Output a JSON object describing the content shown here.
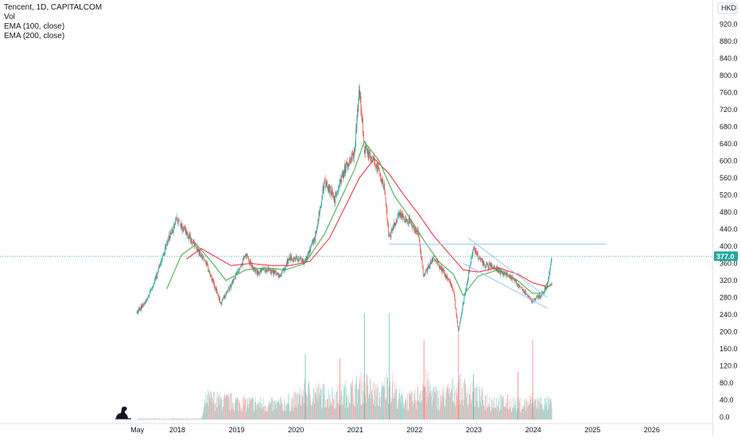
{
  "legend": {
    "title": "Tencent, 1D, CAPITALCOM",
    "vol": "Vol",
    "ema100": "EMA (100, close)",
    "ema200": "EMA (200, close)"
  },
  "currency": "HKD",
  "colors": {
    "up": "#26a69a",
    "down": "#ef5350",
    "ema100": "#4caf50",
    "ema200": "#f23645",
    "trendline": "#90caf9",
    "price_line": "#26a69a",
    "price_badge": "#26a69a"
  },
  "chart_data": {
    "type": "candlestick",
    "title": "Tencent, 1D, CAPITALCOM",
    "ylabel": "HKD",
    "ylim": [
      0,
      940
    ],
    "y_ticks": [
      "920.0",
      "880.0",
      "840.0",
      "800.0",
      "760.0",
      "720.0",
      "680.0",
      "640.0",
      "600.0",
      "560.0",
      "520.0",
      "480.0",
      "440.0",
      "400.0",
      "360.0",
      "320.0",
      "280.0",
      "240.0",
      "200.0",
      "160.0",
      "120.0",
      "80.0",
      "40.0",
      "0.0"
    ],
    "x_ticks": [
      "May",
      "2018",
      "2019",
      "2020",
      "2021",
      "2022",
      "2023",
      "2024",
      "2025",
      "2026"
    ],
    "current_price": 377.0,
    "current_price_label": "377.0",
    "price_path": [
      {
        "date": "2017-05",
        "price": 245
      },
      {
        "date": "2017-07",
        "price": 275
      },
      {
        "date": "2017-09",
        "price": 330
      },
      {
        "date": "2017-11",
        "price": 405
      },
      {
        "date": "2018-01",
        "price": 465
      },
      {
        "date": "2018-03",
        "price": 430
      },
      {
        "date": "2018-05",
        "price": 400
      },
      {
        "date": "2018-07",
        "price": 360
      },
      {
        "date": "2018-10",
        "price": 265
      },
      {
        "date": "2018-12",
        "price": 310
      },
      {
        "date": "2019-03",
        "price": 380
      },
      {
        "date": "2019-05",
        "price": 340
      },
      {
        "date": "2019-08",
        "price": 345
      },
      {
        "date": "2019-10",
        "price": 330
      },
      {
        "date": "2019-12",
        "price": 375
      },
      {
        "date": "2020-03",
        "price": 365
      },
      {
        "date": "2020-05",
        "price": 420
      },
      {
        "date": "2020-07",
        "price": 555
      },
      {
        "date": "2020-09",
        "price": 510
      },
      {
        "date": "2020-11",
        "price": 580
      },
      {
        "date": "2021-01",
        "price": 620
      },
      {
        "date": "2021-02",
        "price": 770
      },
      {
        "date": "2021-03",
        "price": 630
      },
      {
        "date": "2021-05",
        "price": 600
      },
      {
        "date": "2021-07",
        "price": 540
      },
      {
        "date": "2021-08",
        "price": 420
      },
      {
        "date": "2021-10",
        "price": 475
      },
      {
        "date": "2021-12",
        "price": 460
      },
      {
        "date": "2022-02",
        "price": 425
      },
      {
        "date": "2022-03",
        "price": 330
      },
      {
        "date": "2022-05",
        "price": 375
      },
      {
        "date": "2022-07",
        "price": 340
      },
      {
        "date": "2022-09",
        "price": 300
      },
      {
        "date": "2022-10",
        "price": 200
      },
      {
        "date": "2022-12",
        "price": 330
      },
      {
        "date": "2023-01",
        "price": 395
      },
      {
        "date": "2023-03",
        "price": 360
      },
      {
        "date": "2023-06",
        "price": 345
      },
      {
        "date": "2023-09",
        "price": 325
      },
      {
        "date": "2023-11",
        "price": 300
      },
      {
        "date": "2024-01",
        "price": 270
      },
      {
        "date": "2024-03",
        "price": 290
      },
      {
        "date": "2024-04",
        "price": 310
      },
      {
        "date": "2024-05",
        "price": 377
      }
    ],
    "ema100_path": [
      {
        "date": "2017-11",
        "price": 300
      },
      {
        "date": "2018-02",
        "price": 380
      },
      {
        "date": "2018-05",
        "price": 405
      },
      {
        "date": "2018-08",
        "price": 365
      },
      {
        "date": "2018-11",
        "price": 320
      },
      {
        "date": "2019-03",
        "price": 345
      },
      {
        "date": "2019-07",
        "price": 350
      },
      {
        "date": "2019-11",
        "price": 345
      },
      {
        "date": "2020-03",
        "price": 360
      },
      {
        "date": "2020-07",
        "price": 430
      },
      {
        "date": "2020-10",
        "price": 505
      },
      {
        "date": "2021-01",
        "price": 580
      },
      {
        "date": "2021-03",
        "price": 645
      },
      {
        "date": "2021-06",
        "price": 600
      },
      {
        "date": "2021-09",
        "price": 520
      },
      {
        "date": "2021-12",
        "price": 470
      },
      {
        "date": "2022-03",
        "price": 415
      },
      {
        "date": "2022-06",
        "price": 365
      },
      {
        "date": "2022-09",
        "price": 335
      },
      {
        "date": "2022-11",
        "price": 285
      },
      {
        "date": "2023-02",
        "price": 330
      },
      {
        "date": "2023-06",
        "price": 345
      },
      {
        "date": "2023-10",
        "price": 320
      },
      {
        "date": "2024-01",
        "price": 290
      },
      {
        "date": "2024-03",
        "price": 290
      },
      {
        "date": "2024-05",
        "price": 315
      }
    ],
    "ema200_path": [
      {
        "date": "2018-03",
        "price": 370
      },
      {
        "date": "2018-06",
        "price": 395
      },
      {
        "date": "2018-09",
        "price": 375
      },
      {
        "date": "2018-12",
        "price": 355
      },
      {
        "date": "2019-04",
        "price": 360
      },
      {
        "date": "2019-08",
        "price": 355
      },
      {
        "date": "2019-12",
        "price": 355
      },
      {
        "date": "2020-04",
        "price": 365
      },
      {
        "date": "2020-08",
        "price": 420
      },
      {
        "date": "2020-11",
        "price": 490
      },
      {
        "date": "2021-02",
        "price": 560
      },
      {
        "date": "2021-05",
        "price": 605
      },
      {
        "date": "2021-08",
        "price": 570
      },
      {
        "date": "2021-11",
        "price": 520
      },
      {
        "date": "2022-02",
        "price": 475
      },
      {
        "date": "2022-05",
        "price": 425
      },
      {
        "date": "2022-08",
        "price": 385
      },
      {
        "date": "2022-11",
        "price": 345
      },
      {
        "date": "2023-02",
        "price": 340
      },
      {
        "date": "2023-06",
        "price": 350
      },
      {
        "date": "2023-10",
        "price": 335
      },
      {
        "date": "2024-01",
        "price": 315
      },
      {
        "date": "2024-04",
        "price": 305
      },
      {
        "date": "2024-05",
        "price": 310
      }
    ],
    "horizontal_line": {
      "from": "2021-08",
      "to": "2025-04",
      "price": 405
    },
    "trend_channel": [
      {
        "from": {
          "date": "2022-12",
          "price": 420
        },
        "to": {
          "date": "2024-04",
          "price": 280
        }
      },
      {
        "from": {
          "date": "2022-11",
          "price": 360
        },
        "to": {
          "date": "2024-04",
          "price": 255
        }
      }
    ],
    "volume_profile": [
      {
        "date": "2017-05",
        "volume": 2
      },
      {
        "date": "2018-01",
        "volume": 2
      },
      {
        "date": "2018-06",
        "volume": 2
      },
      {
        "date": "2018-07",
        "volume": 50
      },
      {
        "date": "2018-10",
        "volume": 45
      },
      {
        "date": "2019-03",
        "volume": 40
      },
      {
        "date": "2019-09",
        "volume": 35
      },
      {
        "date": "2020-01",
        "volume": 45
      },
      {
        "date": "2020-03",
        "volume": 65
      },
      {
        "date": "2020-06",
        "volume": 60
      },
      {
        "date": "2020-09",
        "volume": 55
      },
      {
        "date": "2021-01",
        "volume": 70
      },
      {
        "date": "2021-03",
        "volume": 80
      },
      {
        "date": "2021-06",
        "volume": 55
      },
      {
        "date": "2021-08",
        "volume": 90
      },
      {
        "date": "2021-10",
        "volume": 50
      },
      {
        "date": "2022-01",
        "volume": 45
      },
      {
        "date": "2022-03",
        "volume": 85
      },
      {
        "date": "2022-06",
        "volume": 50
      },
      {
        "date": "2022-10",
        "volume": 75
      },
      {
        "date": "2023-01",
        "volume": 60
      },
      {
        "date": "2023-04",
        "volume": 45
      },
      {
        "date": "2023-08",
        "volume": 40
      },
      {
        "date": "2023-11",
        "volume": 35
      },
      {
        "date": "2024-01",
        "volume": 45
      },
      {
        "date": "2024-03",
        "volume": 40
      },
      {
        "date": "2024-05",
        "volume": 35
      }
    ],
    "volume_spikes": [
      {
        "date": "2020-03",
        "volume": 145
      },
      {
        "date": "2020-10",
        "volume": 135
      },
      {
        "date": "2021-03",
        "volume": 235
      },
      {
        "date": "2021-08",
        "volume": 235
      },
      {
        "date": "2022-03",
        "volume": 175
      },
      {
        "date": "2022-10",
        "volume": 190
      },
      {
        "date": "2023-01",
        "volume": 100
      },
      {
        "date": "2023-10",
        "volume": 105
      },
      {
        "date": "2024-01",
        "volume": 175
      }
    ],
    "grid": false,
    "legend_position": "top-left"
  }
}
